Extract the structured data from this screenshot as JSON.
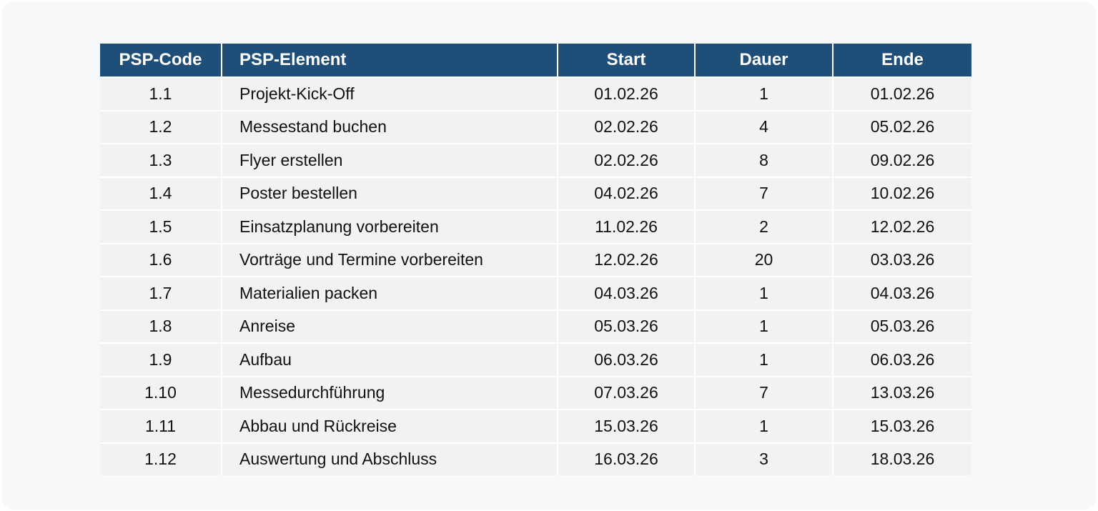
{
  "table": {
    "headers": {
      "code": "PSP-Code",
      "element": "PSP-Element",
      "start": "Start",
      "dauer": "Dauer",
      "ende": "Ende"
    },
    "rows": [
      {
        "code": "1.1",
        "element": "Projekt-Kick-Off",
        "start": "01.02.26",
        "dauer": "1",
        "ende": "01.02.26"
      },
      {
        "code": "1.2",
        "element": "Messestand buchen",
        "start": "02.02.26",
        "dauer": "4",
        "ende": "05.02.26"
      },
      {
        "code": "1.3",
        "element": "Flyer erstellen",
        "start": "02.02.26",
        "dauer": "8",
        "ende": "09.02.26"
      },
      {
        "code": "1.4",
        "element": "Poster bestellen",
        "start": "04.02.26",
        "dauer": "7",
        "ende": "10.02.26"
      },
      {
        "code": "1.5",
        "element": "Einsatzplanung vorbereiten",
        "start": "11.02.26",
        "dauer": "2",
        "ende": "12.02.26"
      },
      {
        "code": "1.6",
        "element": "Vorträge und Termine vorbereiten",
        "start": "12.02.26",
        "dauer": "20",
        "ende": "03.03.26"
      },
      {
        "code": "1.7",
        "element": "Materialien packen",
        "start": "04.03.26",
        "dauer": "1",
        "ende": "04.03.26"
      },
      {
        "code": "1.8",
        "element": "Anreise",
        "start": "05.03.26",
        "dauer": "1",
        "ende": "05.03.26"
      },
      {
        "code": "1.9",
        "element": "Aufbau",
        "start": "06.03.26",
        "dauer": "1",
        "ende": "06.03.26"
      },
      {
        "code": "1.10",
        "element": "Messedurchführung",
        "start": "07.03.26",
        "dauer": "7",
        "ende": "13.03.26"
      },
      {
        "code": "1.11",
        "element": "Abbau und Rückreise",
        "start": "15.03.26",
        "dauer": "1",
        "ende": "15.03.26"
      },
      {
        "code": "1.12",
        "element": "Auswertung und Abschluss",
        "start": "16.03.26",
        "dauer": "3",
        "ende": "18.03.26"
      }
    ]
  },
  "colors": {
    "header_bg": "#1f4e79",
    "header_text": "#ffffff",
    "row_bg": "#f2f2f2",
    "page_bg": "#f6f8fa"
  }
}
